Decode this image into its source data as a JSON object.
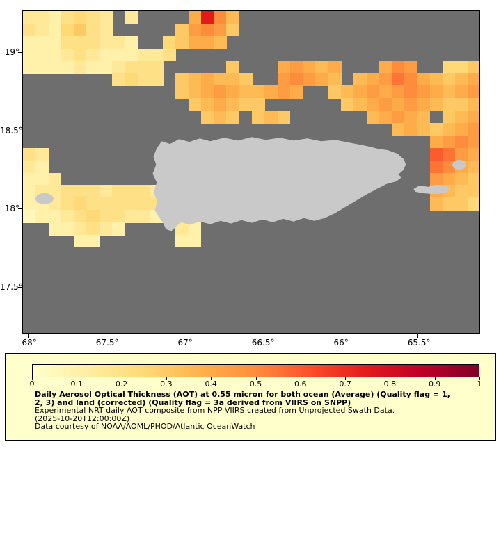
{
  "map": {
    "background_color": "#6E6E6E",
    "land_color": "#C9C9C9",
    "y_axis_ticks": [
      {
        "label": "19°",
        "lat": 19
      },
      {
        "label": "18.5°",
        "lat": 18.5
      },
      {
        "label": "18°",
        "lat": 18
      },
      {
        "label": "17.5°",
        "lat": 17.5
      }
    ],
    "x_axis_ticks": [
      {
        "label": "-68°",
        "lon": -68
      },
      {
        "label": "-67.5°",
        "lon": -67.5
      },
      {
        "label": "-67°",
        "lon": -67
      },
      {
        "label": "-66.5°",
        "lon": -66.5
      },
      {
        "label": "-66°",
        "lon": -66
      },
      {
        "label": "-65.5°",
        "lon": -65.5
      }
    ]
  },
  "chart_data": {
    "type": "heatmap",
    "title": "Daily Aerosol Optical Thickness (AOT) at 0.55 micron",
    "colormap": "YlOrRd",
    "value_range": [
      0,
      1
    ],
    "lon_range": [
      -68.04,
      -65.1
    ],
    "lat_range": [
      17.2,
      19.27
    ],
    "n_cols": 36,
    "missing_char": ".",
    "encoding": {
      "a": 0.05,
      "b": 0.1,
      "c": 0.15,
      "d": 0.2,
      "e": 0.25,
      "f": 0.3,
      "g": 0.35,
      "h": 0.4,
      "i": 0.45,
      "j": 0.5,
      "k": 0.55,
      "l": 0.6,
      "m": 0.65,
      "n": 0.7,
      "o": 0.75,
      "p": 0.8
    },
    "grid_rows": [
      "ccbdedc.c....hojg...................",
      "dcbefdc.....fijif...................",
      "bbbdddccb..efhhg....................",
      "bbbcdcbbbccd........................",
      "bbbbcbbcddd.....f...hihgh...hji..eef",
      ".......dedd.fghggf..ijihg.ghikjhgfgh",
      "............fghihgghih..fghihijihghi",
      ".............fghgff......fghihihgffg",
      "..............fgf.fgf......ghihg.fgh",
      ".............................ghgfghi",
      "................................hiji",
      "dc..............................lkih",
      "cb..............................kjhg",
      "bbc.............................ihgf",
      "bccdddcdddc.....................hgff",
      "bbcdedddddd.....................gffe",
      "abbcdeddccb.........................",
      "..bbcdcb....cb......................",
      "....bb......bb......................",
      "....................................",
      "....................................",
      "....................................",
      "....................................",
      "....................................",
      "....................................",
      "...................................."
    ]
  },
  "legend": {
    "background_color": "#FFFFCC",
    "colorbar": {
      "min": 0,
      "max": 1,
      "tick_labels": [
        "0",
        "0.1",
        "0.2",
        "0.3",
        "0.4",
        "0.5",
        "0.6",
        "0.7",
        "0.8",
        "0.9",
        "1"
      ],
      "stops": [
        [
          0,
          "#FFFFCC"
        ],
        [
          0.125,
          "#FFEDA0"
        ],
        [
          0.25,
          "#FED976"
        ],
        [
          0.375,
          "#FEB24C"
        ],
        [
          0.5,
          "#FD8D3C"
        ],
        [
          0.625,
          "#FC4E2A"
        ],
        [
          0.75,
          "#E31A1C"
        ],
        [
          0.875,
          "#BD0026"
        ],
        [
          1,
          "#800026"
        ]
      ]
    },
    "title_line1": "Daily Aerosol Optical Thickness (AOT) at 0.55 micron for both ocean (Average) (Quality flag = 1,",
    "title_line2": "2, 3) and land (corrected) (Quality flag = 3a derived from VIIRS on SNPP)",
    "description": "Experimental NRT daily AOT composite from NPP VIIRS created from Unprojected Swath Data.",
    "timestamp": "(2025-10-20T12:00:00Z)",
    "credit": "Data courtesy of NOAA/AOML/PHOD/Atlantic OceanWatch"
  }
}
